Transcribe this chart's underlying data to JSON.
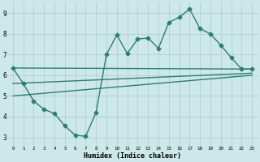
{
  "xlabel": "Humidex (Indice chaleur)",
  "bg_color": "#cce8e8",
  "grid_color": "#b0d0d0",
  "line_color": "#2e7d6e",
  "xlim": [
    -0.5,
    23.5
  ],
  "ylim": [
    2.6,
    9.5
  ],
  "xticks": [
    0,
    1,
    2,
    3,
    4,
    5,
    6,
    7,
    8,
    9,
    10,
    11,
    12,
    13,
    14,
    15,
    16,
    17,
    18,
    19,
    20,
    21,
    22,
    23
  ],
  "yticks": [
    3,
    4,
    5,
    6,
    7,
    8,
    9
  ],
  "main_x": [
    0,
    1,
    2,
    3,
    4,
    5,
    6,
    7,
    8,
    9,
    10,
    11,
    12,
    13,
    14,
    15,
    16,
    17,
    18,
    19,
    20,
    21,
    22,
    23
  ],
  "main_y": [
    6.35,
    5.6,
    4.75,
    4.35,
    4.15,
    3.55,
    3.1,
    3.05,
    4.2,
    7.0,
    7.95,
    7.05,
    7.75,
    7.8,
    7.3,
    8.55,
    8.8,
    9.2,
    8.25,
    8.0,
    7.45,
    6.85,
    6.3,
    6.3
  ],
  "line1_x": [
    0,
    23
  ],
  "line1_y": [
    6.35,
    6.3
  ],
  "line2_x": [
    0,
    23
  ],
  "line2_y": [
    5.6,
    6.1
  ],
  "line3_x": [
    0,
    23
  ],
  "line3_y": [
    5.0,
    6.0
  ],
  "marker": "D",
  "markersize": 2.5,
  "linewidth": 1.0
}
